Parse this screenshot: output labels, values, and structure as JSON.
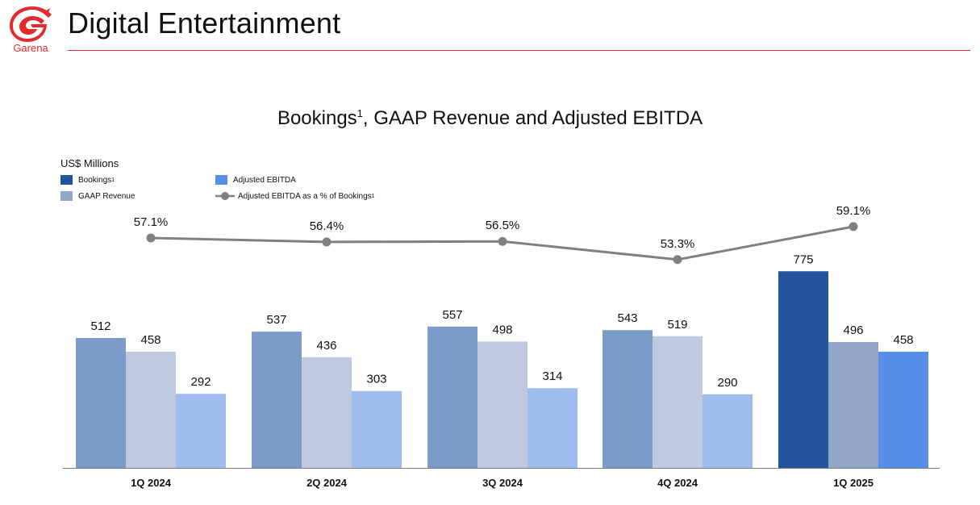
{
  "header": {
    "logo_text": "Garena",
    "title": "Digital Entertainment"
  },
  "colors": {
    "brand_red": "#e4292f",
    "bookings": "#7b9bc8",
    "gaap": "#bfc9e0",
    "ebitda": "#9fbcef",
    "bookings_highlight": "#2254a0",
    "gaap_highlight": "#92a6c8",
    "ebitda_highlight": "#578ee8",
    "line": "#808080"
  },
  "legend": {
    "bookings": "Bookings",
    "bookings_sup": "1",
    "gaap": "GAAP Revenue",
    "ebitda": "Adjusted EBITDA",
    "margin": "Adjusted EBITDA as a % of Bookings",
    "margin_sup": "1"
  },
  "chart_data": {
    "type": "bar",
    "title": "Bookings",
    "title_sup": "1",
    "title_rest": ", GAAP Revenue and Adjusted EBITDA",
    "unit_label": "US$ Millions",
    "categories": [
      "1Q 2024",
      "2Q 2024",
      "3Q 2024",
      "4Q 2024",
      "1Q 2025"
    ],
    "series": [
      {
        "name": "Bookings",
        "values": [
          512,
          537,
          557,
          543,
          775
        ]
      },
      {
        "name": "GAAP Revenue",
        "values": [
          458,
          436,
          498,
          519,
          496
        ]
      },
      {
        "name": "Adjusted EBITDA",
        "values": [
          292,
          303,
          314,
          290,
          458
        ]
      }
    ],
    "line_series": {
      "name": "Adjusted EBITDA as a % of Bookings",
      "values": [
        57.1,
        56.4,
        56.5,
        53.3,
        59.1
      ],
      "labels": [
        "57.1%",
        "56.4%",
        "56.5%",
        "53.3%",
        "59.1%"
      ]
    },
    "highlighted_category": "1Q 2025",
    "grid": false,
    "legend_position": "top-left"
  }
}
